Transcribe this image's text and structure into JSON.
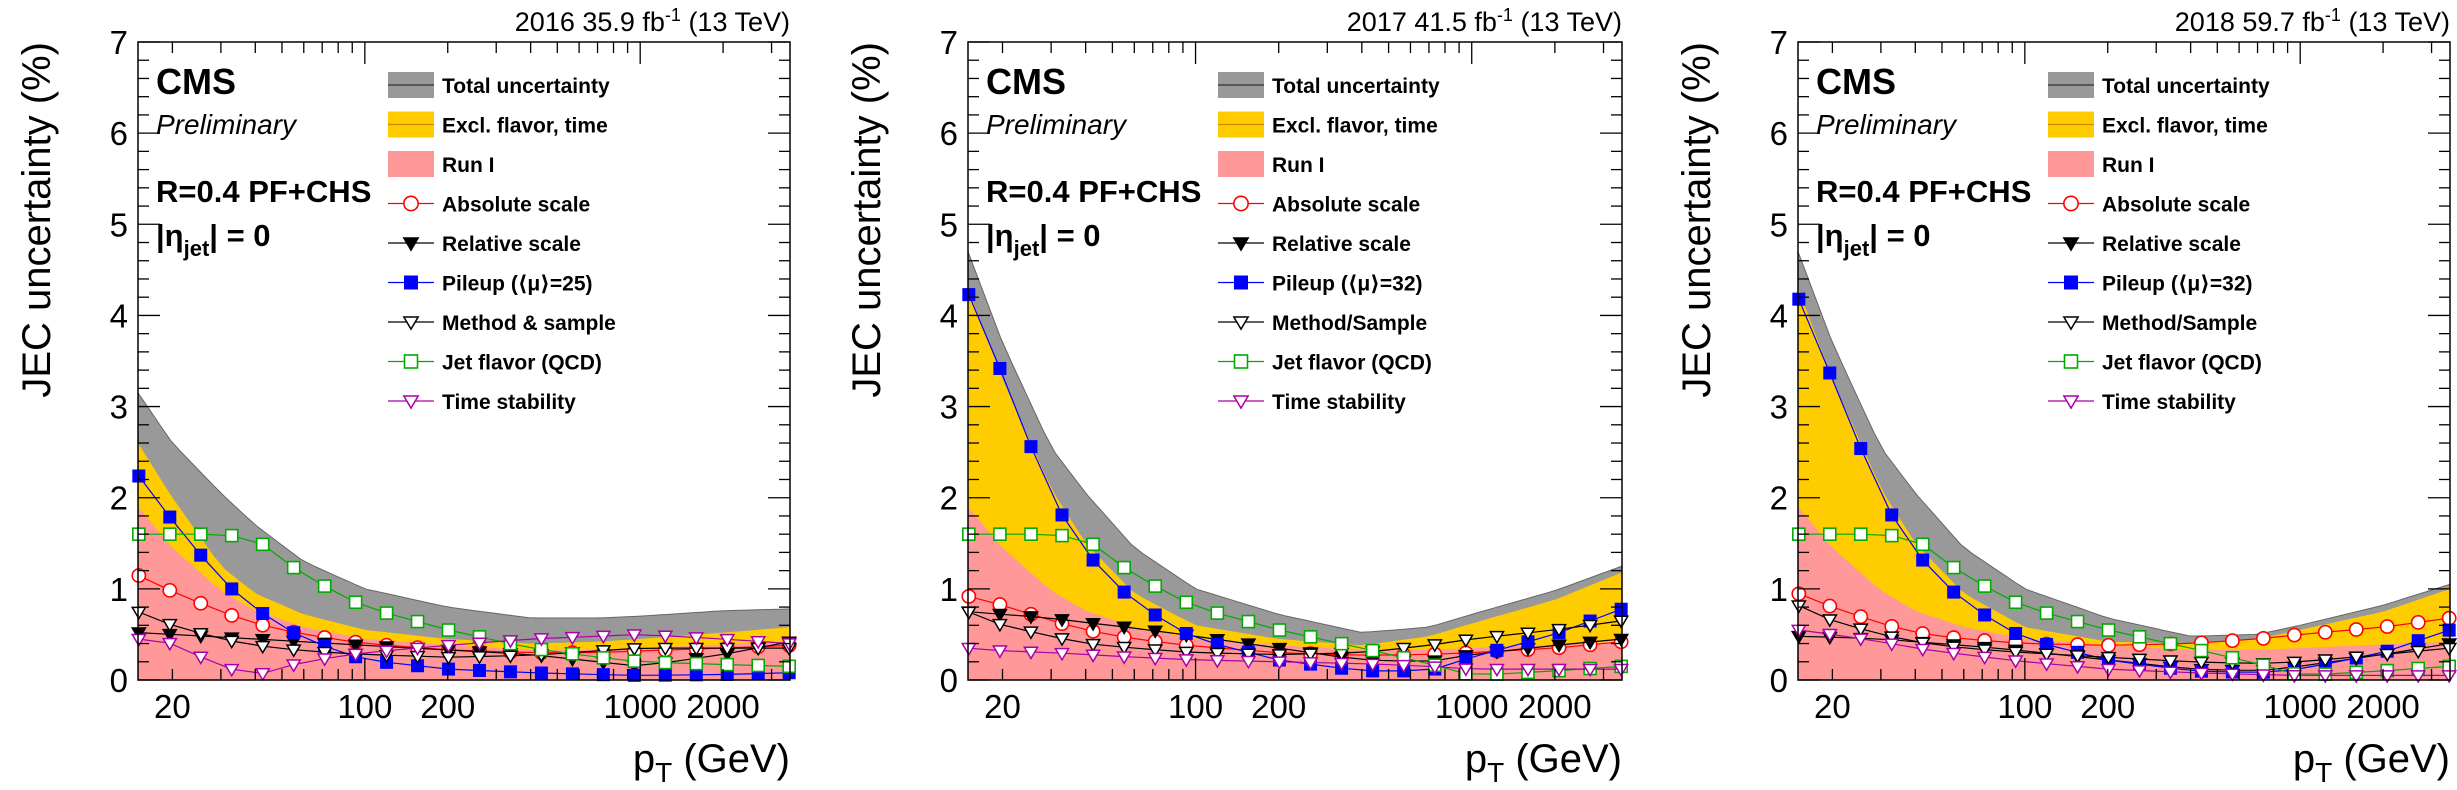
{
  "chart_data": [
    {
      "type": "line",
      "lumi_label": "2016 35.9 fb",
      "lumi_exp": "-1",
      "energy_label": " (13 TeV)",
      "cms_label": "CMS",
      "prelim_label": "Preliminary",
      "algo_label": "R=0.4 PF+CHS",
      "eta_prefix": "|η",
      "eta_sub": "jet",
      "eta_suffix": "| = 0",
      "ylabel": "JEC uncertainty (%)",
      "xlabel_main": "p",
      "xlabel_sub": "T",
      "xlabel_unit": " (GeV)",
      "xscale": "log",
      "xlim": [
        15,
        3500
      ],
      "ylim": [
        0,
        7
      ],
      "yticks": [
        0,
        1,
        2,
        3,
        4,
        5,
        6,
        7
      ],
      "xticks": [
        20,
        100,
        200,
        1000,
        2000
      ],
      "xticklabels": [
        "20",
        "100",
        "200",
        "1000",
        "2000"
      ],
      "x": [
        15,
        20,
        30,
        40,
        60,
        100,
        200,
        400,
        700,
        1000,
        2000,
        3500
      ],
      "bands": [
        {
          "name": "Total uncertainty",
          "color": "#999999",
          "values": [
            3.15,
            2.6,
            2.05,
            1.7,
            1.3,
            1.0,
            0.8,
            0.68,
            0.68,
            0.7,
            0.76,
            0.78
          ]
        },
        {
          "name": "Excl. flavor, time",
          "color": "#ffcc00",
          "values": [
            2.6,
            2.0,
            1.25,
            0.95,
            0.72,
            0.55,
            0.45,
            0.4,
            0.42,
            0.45,
            0.52,
            0.58
          ]
        },
        {
          "name": "Run I",
          "color": "#ff9999",
          "values": [
            1.9,
            1.45,
            0.98,
            0.76,
            0.58,
            0.45,
            0.38,
            0.33,
            0.33,
            0.35,
            0.39,
            0.42
          ]
        }
      ],
      "series": [
        {
          "name": "Absolute scale",
          "color": "#ff0000",
          "marker": "circle",
          "values": [
            1.15,
            0.97,
            0.75,
            0.62,
            0.5,
            0.4,
            0.33,
            0.3,
            0.3,
            0.32,
            0.35,
            0.38
          ]
        },
        {
          "name": "Relative scale",
          "color": "#000000",
          "marker": "tri-down-filled",
          "values": [
            0.52,
            0.5,
            0.47,
            0.45,
            0.42,
            0.38,
            0.33,
            0.28,
            0.2,
            0.15,
            0.28,
            0.42
          ]
        },
        {
          "name": "Pileup (⟨μ⟩=25)",
          "color": "#0000ff",
          "marker": "square-filled",
          "values": [
            2.25,
            1.75,
            1.1,
            0.78,
            0.45,
            0.22,
            0.12,
            0.08,
            0.06,
            0.05,
            0.06,
            0.08
          ]
        },
        {
          "name": "Method & sample",
          "color": "#000000",
          "marker": "tri-down",
          "values": [
            0.75,
            0.6,
            0.45,
            0.38,
            0.32,
            0.28,
            0.25,
            0.27,
            0.32,
            0.35,
            0.35,
            0.35
          ]
        },
        {
          "name": "Jet flavor (QCD)",
          "color": "#00aa00",
          "marker": "square",
          "values": [
            1.6,
            1.6,
            1.6,
            1.55,
            1.15,
            0.8,
            0.55,
            0.35,
            0.25,
            0.2,
            0.17,
            0.15
          ]
        },
        {
          "name": "Time stability",
          "color": "#aa00aa",
          "marker": "tri-down",
          "values": [
            0.45,
            0.4,
            0.15,
            0.05,
            0.2,
            0.3,
            0.38,
            0.45,
            0.48,
            0.5,
            0.45,
            0.4
          ]
        }
      ]
    },
    {
      "type": "line",
      "lumi_label": "2017 41.5 fb",
      "lumi_exp": "-1",
      "energy_label": " (13 TeV)",
      "cms_label": "CMS",
      "prelim_label": "Preliminary",
      "algo_label": "R=0.4 PF+CHS",
      "eta_prefix": "|η",
      "eta_sub": "jet",
      "eta_suffix": "| = 0",
      "ylabel": "JEC uncertainty (%)",
      "xlabel_main": "p",
      "xlabel_sub": "T",
      "xlabel_unit": " (GeV)",
      "xscale": "log",
      "xlim": [
        15,
        3500
      ],
      "ylim": [
        0,
        7
      ],
      "yticks": [
        0,
        1,
        2,
        3,
        4,
        5,
        6,
        7
      ],
      "xticks": [
        20,
        100,
        200,
        1000,
        2000
      ],
      "xticklabels": [
        "20",
        "100",
        "200",
        "1000",
        "2000"
      ],
      "x": [
        15,
        20,
        30,
        40,
        60,
        100,
        200,
        400,
        700,
        1000,
        2000,
        3500
      ],
      "bands": [
        {
          "name": "Total uncertainty",
          "color": "#999999",
          "values": [
            4.7,
            3.7,
            2.55,
            2.05,
            1.45,
            1.0,
            0.72,
            0.52,
            0.58,
            0.72,
            0.98,
            1.25
          ]
        },
        {
          "name": "Excl. flavor, time",
          "color": "#ffcc00",
          "values": [
            4.3,
            3.3,
            2.1,
            1.5,
            0.95,
            0.6,
            0.45,
            0.38,
            0.48,
            0.62,
            0.88,
            1.18
          ]
        },
        {
          "name": "Run I",
          "color": "#ff9999",
          "values": [
            1.9,
            1.45,
            0.98,
            0.76,
            0.58,
            0.45,
            0.38,
            0.33,
            0.33,
            0.35,
            0.39,
            0.42
          ]
        }
      ],
      "series": [
        {
          "name": "Absolute scale",
          "color": "#ff0000",
          "marker": "circle",
          "values": [
            0.92,
            0.82,
            0.65,
            0.55,
            0.45,
            0.37,
            0.3,
            0.27,
            0.28,
            0.3,
            0.35,
            0.42
          ]
        },
        {
          "name": "Relative scale",
          "color": "#000000",
          "marker": "tri-down-filled",
          "values": [
            0.75,
            0.72,
            0.68,
            0.63,
            0.57,
            0.48,
            0.35,
            0.22,
            0.2,
            0.28,
            0.38,
            0.45
          ]
        },
        {
          "name": "Pileup (⟨μ⟩=32)",
          "color": "#0000ff",
          "marker": "square-filled",
          "values": [
            4.25,
            3.35,
            2.0,
            1.4,
            0.85,
            0.45,
            0.22,
            0.1,
            0.1,
            0.25,
            0.5,
            0.78
          ]
        },
        {
          "name": "Method/Sample",
          "color": "#000000",
          "marker": "tri-down",
          "values": [
            0.75,
            0.6,
            0.48,
            0.4,
            0.35,
            0.3,
            0.28,
            0.3,
            0.38,
            0.45,
            0.55,
            0.65
          ]
        },
        {
          "name": "Jet flavor (QCD)",
          "color": "#00aa00",
          "marker": "square",
          "values": [
            1.6,
            1.6,
            1.6,
            1.55,
            1.15,
            0.8,
            0.55,
            0.35,
            0.18,
            0.05,
            0.1,
            0.15
          ]
        },
        {
          "name": "Time stability",
          "color": "#aa00aa",
          "marker": "tri-down",
          "values": [
            0.35,
            0.32,
            0.3,
            0.28,
            0.25,
            0.22,
            0.2,
            0.18,
            0.15,
            0.12,
            0.12,
            0.12
          ]
        }
      ]
    },
    {
      "type": "line",
      "lumi_label": "2018 59.7 fb",
      "lumi_exp": "-1",
      "energy_label": " (13 TeV)",
      "cms_label": "CMS",
      "prelim_label": "Preliminary",
      "algo_label": "R=0.4 PF+CHS",
      "eta_prefix": "|η",
      "eta_sub": "jet",
      "eta_suffix": "| = 0",
      "ylabel": "JEC uncertainty (%)",
      "xlabel_main": "p",
      "xlabel_sub": "T",
      "xlabel_unit": " (GeV)",
      "xscale": "log",
      "xlim": [
        15,
        3500
      ],
      "ylim": [
        0,
        7
      ],
      "yticks": [
        0,
        1,
        2,
        3,
        4,
        5,
        6,
        7
      ],
      "xticks": [
        20,
        100,
        200,
        1000,
        2000
      ],
      "xticklabels": [
        "20",
        "100",
        "200",
        "1000",
        "2000"
      ],
      "x": [
        15,
        20,
        30,
        40,
        60,
        100,
        200,
        400,
        700,
        1000,
        2000,
        3500
      ],
      "bands": [
        {
          "name": "Total uncertainty",
          "color": "#999999",
          "values": [
            4.7,
            3.7,
            2.55,
            2.05,
            1.45,
            1.0,
            0.68,
            0.48,
            0.5,
            0.6,
            0.82,
            1.05
          ]
        },
        {
          "name": "Excl. flavor, time",
          "color": "#ffcc00",
          "values": [
            4.3,
            3.3,
            2.1,
            1.5,
            0.95,
            0.58,
            0.42,
            0.4,
            0.45,
            0.55,
            0.75,
            1.0
          ]
        },
        {
          "name": "Run I",
          "color": "#ff9999",
          "values": [
            1.9,
            1.45,
            0.98,
            0.76,
            0.58,
            0.45,
            0.38,
            0.33,
            0.33,
            0.35,
            0.39,
            0.42
          ]
        }
      ],
      "series": [
        {
          "name": "Absolute scale",
          "color": "#ff0000",
          "marker": "circle",
          "values": [
            0.95,
            0.8,
            0.62,
            0.52,
            0.45,
            0.4,
            0.38,
            0.4,
            0.45,
            0.5,
            0.58,
            0.68
          ]
        },
        {
          "name": "Relative scale",
          "color": "#000000",
          "marker": "tri-down-filled",
          "values": [
            0.48,
            0.47,
            0.45,
            0.42,
            0.38,
            0.32,
            0.22,
            0.12,
            0.1,
            0.15,
            0.28,
            0.4
          ]
        },
        {
          "name": "Pileup (⟨μ⟩=32)",
          "color": "#0000ff",
          "marker": "square-filled",
          "values": [
            4.2,
            3.3,
            2.0,
            1.4,
            0.85,
            0.45,
            0.22,
            0.1,
            0.08,
            0.12,
            0.3,
            0.55
          ]
        },
        {
          "name": "Method/Sample",
          "color": "#000000",
          "marker": "tri-down",
          "values": [
            0.82,
            0.65,
            0.5,
            0.42,
            0.35,
            0.3,
            0.25,
            0.2,
            0.18,
            0.2,
            0.28,
            0.35
          ]
        },
        {
          "name": "Jet flavor (QCD)",
          "color": "#00aa00",
          "marker": "square",
          "values": [
            1.6,
            1.6,
            1.6,
            1.55,
            1.15,
            0.8,
            0.55,
            0.35,
            0.18,
            0.05,
            0.1,
            0.15
          ]
        },
        {
          "name": "Time stability",
          "color": "#aa00aa",
          "marker": "tri-down",
          "values": [
            0.55,
            0.5,
            0.42,
            0.35,
            0.28,
            0.2,
            0.12,
            0.08,
            0.06,
            0.05,
            0.05,
            0.05
          ]
        }
      ]
    }
  ]
}
